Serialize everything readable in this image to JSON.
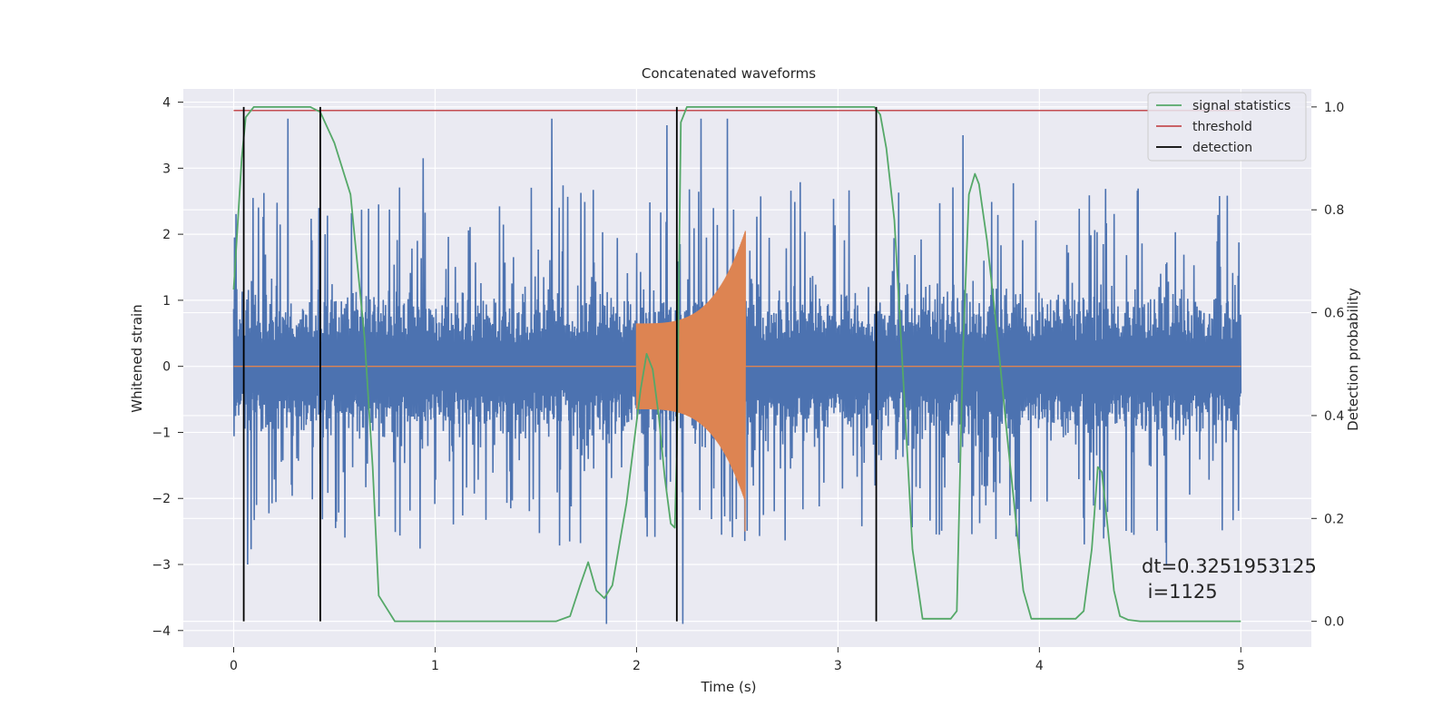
{
  "chart_data": {
    "type": "line",
    "title": "Concatenated waveforms",
    "xlabel": "Time (s)",
    "ylabel_left": "Whitened strain",
    "ylabel_right": "Detection probability",
    "xlim": [
      -0.25,
      5.35
    ],
    "ylim_left": [
      -4.25,
      4.2
    ],
    "ylim_right": [
      -0.05,
      1.035
    ],
    "x_ticks": [
      0,
      1,
      2,
      3,
      4,
      5
    ],
    "x_tick_labels": [
      "0",
      "1",
      "2",
      "3",
      "4",
      "5"
    ],
    "y_ticks_left": [
      -4,
      -3,
      -2,
      -1,
      0,
      1,
      2,
      3,
      4
    ],
    "y_tick_labels_left": [
      "−4",
      "−3",
      "−2",
      "−1",
      "0",
      "1",
      "2",
      "3",
      "4"
    ],
    "y_ticks_right": [
      0.0,
      0.2,
      0.4,
      0.6,
      0.8,
      1.0
    ],
    "y_tick_labels_right": [
      "0.0",
      "0.2",
      "0.4",
      "0.6",
      "0.8",
      "1.0"
    ],
    "grid": true,
    "legend_position": "top-right",
    "legend": [
      {
        "label": "signal statistics",
        "color": "#55a868"
      },
      {
        "label": "threshold",
        "color": "#c44e52"
      },
      {
        "label": "detection",
        "color": "#000000"
      }
    ],
    "noise_series": {
      "color": "#4c72b0",
      "x_range": [
        0,
        5
      ],
      "core_amplitude": 0.75,
      "max_spikes": [
        {
          "x": 0.27,
          "y": 3.75
        },
        {
          "x": 1.58,
          "y": 3.75
        },
        {
          "x": 2.32,
          "y": 3.75
        },
        {
          "x": 2.45,
          "y": 3.75
        },
        {
          "x": 3.62,
          "y": 3.5
        },
        {
          "x": 2.15,
          "y": 3.65
        },
        {
          "x": 0.94,
          "y": 3.15
        },
        {
          "x": 1.85,
          "y": -3.9
        },
        {
          "x": 2.23,
          "y": -3.9
        },
        {
          "x": 4.63,
          "y": -3.0
        },
        {
          "x": 0.07,
          "y": -3.0
        }
      ]
    },
    "injection_series": {
      "color": "#dd8452",
      "x_range": [
        2.0,
        2.54
      ],
      "start_amplitude": 0.65,
      "end_amplitude": 2.05,
      "end_min": -2.5
    },
    "signal_statistics": {
      "color": "#55a868",
      "x": [
        0.0,
        0.04,
        0.06,
        0.1,
        0.38,
        0.43,
        0.5,
        0.58,
        0.65,
        0.69,
        0.72,
        0.8,
        1.0,
        1.6,
        1.67,
        1.72,
        1.76,
        1.8,
        1.84,
        1.88,
        1.95,
        2.02,
        2.05,
        2.08,
        2.11,
        2.14,
        2.17,
        2.19,
        2.2,
        2.22,
        2.25,
        3.18,
        3.21,
        3.24,
        3.28,
        3.33,
        3.37,
        3.42,
        3.56,
        3.59,
        3.62,
        3.65,
        3.68,
        3.7,
        3.74,
        3.79,
        3.84,
        3.89,
        3.92,
        3.96,
        4.18,
        4.22,
        4.26,
        4.29,
        4.31,
        4.34,
        4.37,
        4.4,
        4.44,
        4.5,
        5.0
      ],
      "y": [
        0.645,
        0.9,
        0.98,
        1.0,
        1.0,
        0.99,
        0.93,
        0.83,
        0.55,
        0.3,
        0.05,
        0.0,
        0.0,
        0.0,
        0.01,
        0.07,
        0.115,
        0.06,
        0.045,
        0.07,
        0.23,
        0.45,
        0.52,
        0.49,
        0.4,
        0.28,
        0.19,
        0.182,
        0.33,
        0.97,
        1.0,
        1.0,
        0.985,
        0.92,
        0.78,
        0.43,
        0.14,
        0.005,
        0.005,
        0.02,
        0.52,
        0.83,
        0.87,
        0.85,
        0.74,
        0.56,
        0.36,
        0.17,
        0.06,
        0.005,
        0.005,
        0.02,
        0.14,
        0.3,
        0.29,
        0.18,
        0.06,
        0.01,
        0.003,
        0.0,
        0.0
      ]
    },
    "threshold": {
      "value": 0.993,
      "x_range": [
        0,
        5
      ],
      "color": "#c44e52"
    },
    "detections": [
      0.05,
      0.43,
      2.2,
      3.19
    ],
    "detection_range": [
      0.0,
      1.0
    ],
    "annotation_lines": [
      "dt=0.3251953125",
      " i=1125"
    ]
  }
}
